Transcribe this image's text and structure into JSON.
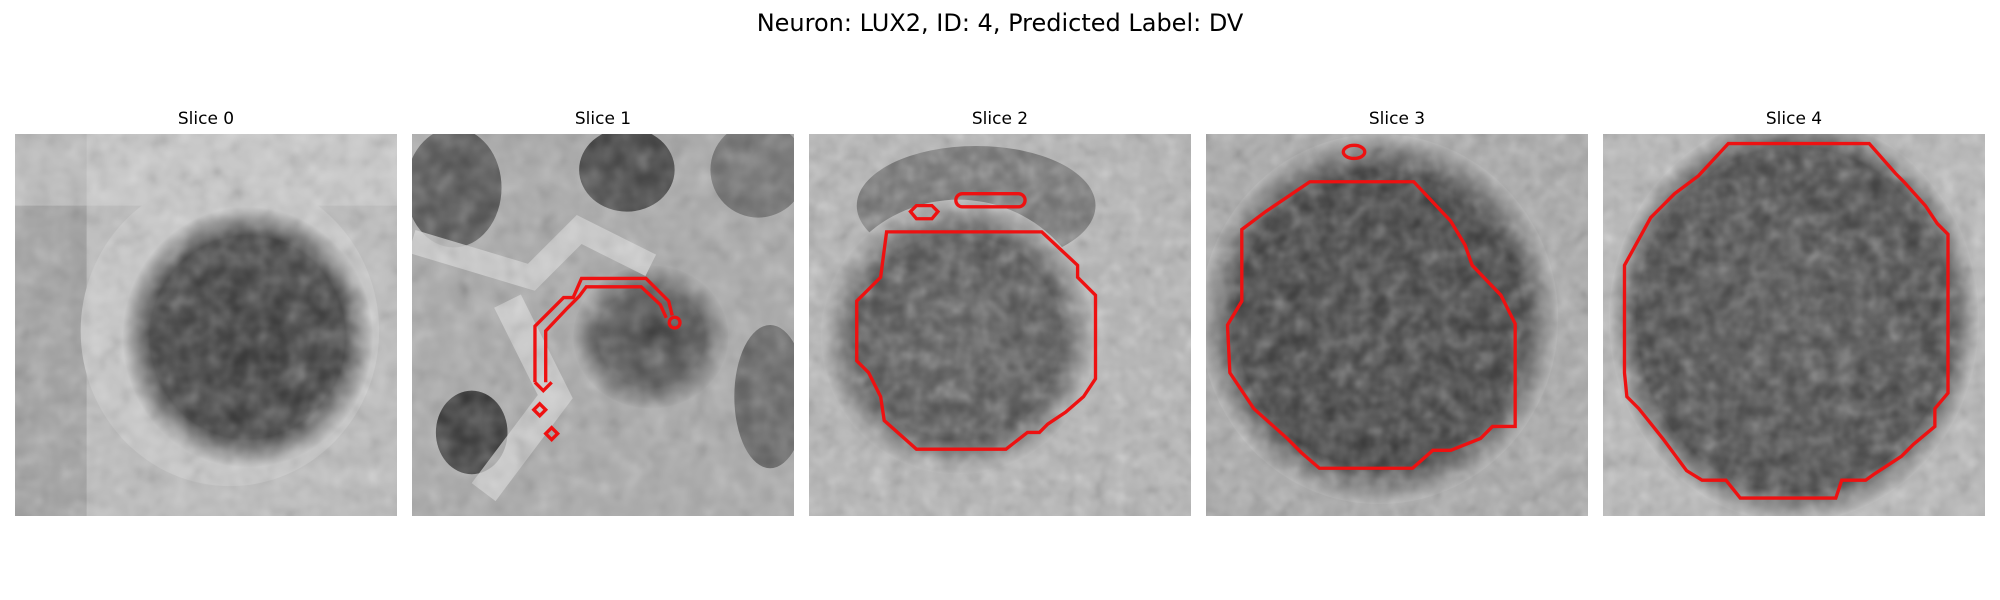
{
  "figure": {
    "title": "Neuron: LUX2, ID: 4, Predicted Label: DV"
  },
  "slices": [
    {
      "title": "Slice 0"
    },
    {
      "title": "Slice 1"
    },
    {
      "title": "Slice 2"
    },
    {
      "title": "Slice 3"
    },
    {
      "title": "Slice 4"
    }
  ],
  "colors": {
    "contour": "#ee1111",
    "background": "#ffffff",
    "image_colormap": "gray"
  }
}
